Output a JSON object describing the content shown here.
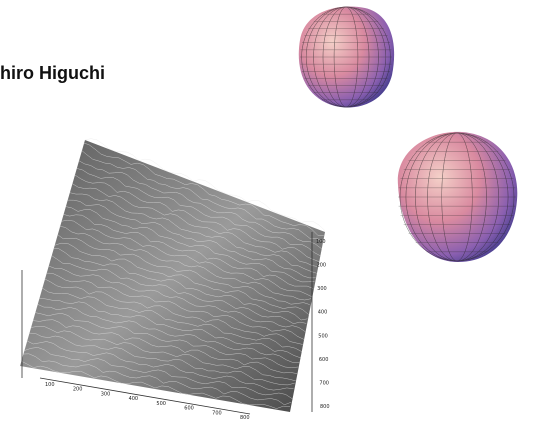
{
  "heading": "hiro Higuchi",
  "surface_plot": {
    "x_ticks": [
      "100",
      "200",
      "300",
      "400",
      "500",
      "600",
      "700",
      "800"
    ],
    "depth_ticks": [
      "100",
      "200",
      "300",
      "400",
      "500",
      "600",
      "700",
      "800"
    ]
  }
}
